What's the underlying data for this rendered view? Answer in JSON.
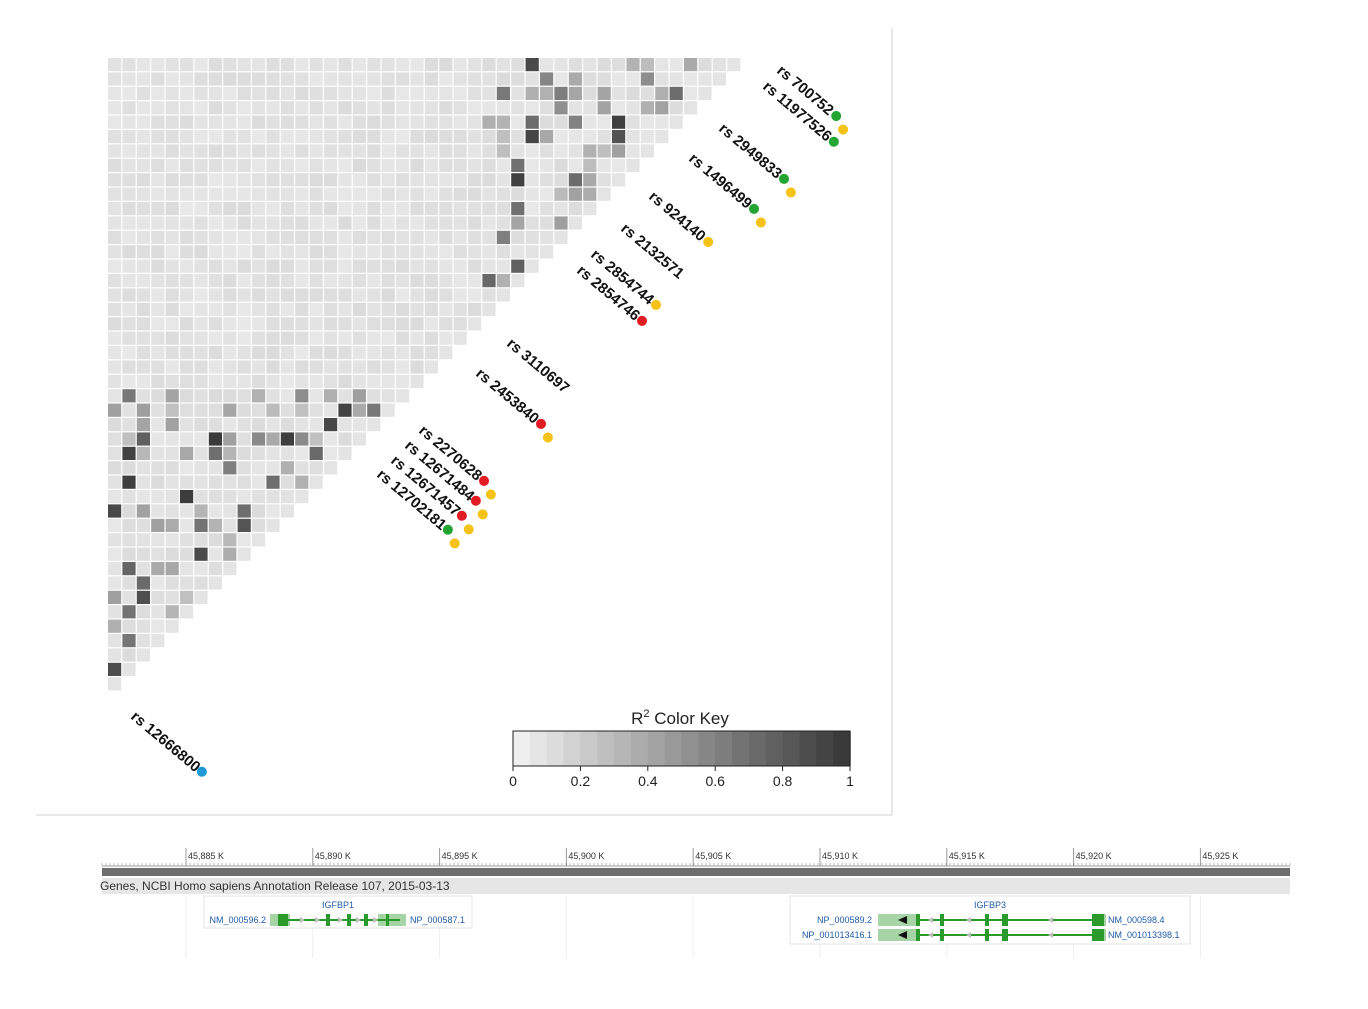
{
  "ld_plot": {
    "snps": [
      {
        "name": "rs 700752",
        "dots": [
          "green",
          "yellow"
        ]
      },
      {
        "name": "rs 11977526",
        "dots": [
          "green"
        ]
      },
      {
        "name": "rs 2949833",
        "dots": [
          "green",
          "yellow"
        ]
      },
      {
        "name": "rs 1496499",
        "dots": [
          "green",
          "yellow"
        ]
      },
      {
        "name": "rs 924140",
        "dots": [
          "yellow"
        ]
      },
      {
        "name": "rs 2132571",
        "dots": []
      },
      {
        "name": "rs 2854744",
        "dots": [
          "yellow"
        ]
      },
      {
        "name": "rs 2854746",
        "dots": [
          "red"
        ]
      },
      {
        "name": "rs 3110697",
        "dots": []
      },
      {
        "name": "rs 2453840",
        "dots": [
          "red",
          "yellow"
        ]
      },
      {
        "name": "rs 2270628",
        "dots": [
          "red",
          "yellow"
        ]
      },
      {
        "name": "rs 12671484",
        "dots": [
          "red",
          "yellow"
        ]
      },
      {
        "name": "rs 12671457",
        "dots": [
          "red",
          "yellow"
        ]
      },
      {
        "name": "rs 12702181",
        "dots": [
          "green",
          "yellow"
        ]
      },
      {
        "name": "rs 12666800",
        "dots": [
          "blue"
        ]
      }
    ],
    "dot_colors": {
      "green": "#22a532",
      "yellow": "#f5c218",
      "red": "#e31b23",
      "blue": "#1e9ad6"
    },
    "color_key": {
      "title": "R",
      "title_sup": "2",
      "title_rest": " Color Key",
      "ticks": [
        "0",
        "0.2",
        "0.4",
        "0.6",
        "0.8",
        "1"
      ],
      "low_color": "#efefef",
      "high_color": "#3a3a3a"
    }
  },
  "genome_view": {
    "ruler_ticks": [
      "45,885 K",
      "45,890 K",
      "45,895 K",
      "45,900 K",
      "45,905 K",
      "45,910 K",
      "45,915 K",
      "45,920 K",
      "45,925 K"
    ],
    "track_title": "Genes, NCBI Homo sapiens Annotation Release 107, 2015-03-13",
    "genes": [
      {
        "name": "IGFBP1",
        "transcripts": [
          {
            "left": "NM_000596.2",
            "right": "NP_000587.1"
          }
        ]
      },
      {
        "name": "IGFBP3",
        "transcripts": [
          {
            "left": "NP_000589.2",
            "right": "NM_000598.4"
          },
          {
            "left": "NP_001013416.1",
            "right": "NM_001013398.1"
          }
        ]
      }
    ],
    "gene_color": "#2a9a2a"
  }
}
